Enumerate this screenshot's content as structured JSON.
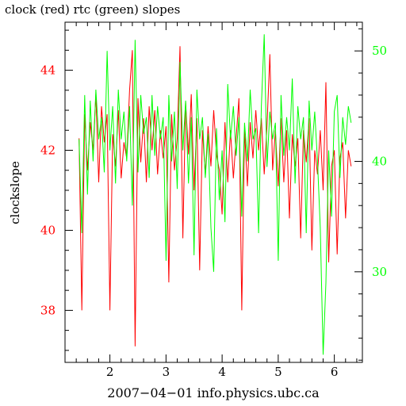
{
  "chart_data": {
    "type": "line",
    "title": "clock (red) rtc (green) slopes",
    "xlabel": "2007−04−01 info.physics.ubc.ca",
    "ylabel": "clockslope",
    "xlim": [
      1.2,
      6.5
    ],
    "ylim_left": [
      36.7,
      45.2
    ],
    "ylim_right": [
      21.8,
      52.6
    ],
    "x_ticks": [
      "2",
      "3",
      "4",
      "5",
      "6"
    ],
    "y_ticks_left": [
      "38",
      "40",
      "42",
      "44"
    ],
    "y_ticks_right": [
      "30",
      "40",
      "50"
    ],
    "colors": {
      "axis": "#000000",
      "left": "#ff0000",
      "right": "#00ff00",
      "red_series": "#ff0000",
      "green_series": "#00ff00"
    },
    "series": [
      {
        "name": "clock",
        "axis": "left",
        "color": "#ff0000",
        "x": [
          1.45,
          1.5,
          1.55,
          1.6,
          1.65,
          1.7,
          1.75,
          1.8,
          1.85,
          1.9,
          1.95,
          2.0,
          2.05,
          2.1,
          2.15,
          2.2,
          2.25,
          2.3,
          2.35,
          2.4,
          2.45,
          2.5,
          2.55,
          2.6,
          2.65,
          2.7,
          2.75,
          2.8,
          2.85,
          2.9,
          2.95,
          3.0,
          3.05,
          3.1,
          3.15,
          3.2,
          3.25,
          3.3,
          3.35,
          3.4,
          3.45,
          3.5,
          3.55,
          3.6,
          3.65,
          3.7,
          3.75,
          3.8,
          3.85,
          3.9,
          3.95,
          4.0,
          4.05,
          4.1,
          4.15,
          4.2,
          4.25,
          4.3,
          4.35,
          4.4,
          4.45,
          4.5,
          4.55,
          4.6,
          4.65,
          4.7,
          4.75,
          4.8,
          4.85,
          4.9,
          4.95,
          5.0,
          5.05,
          5.1,
          5.15,
          5.2,
          5.25,
          5.3,
          5.35,
          5.4,
          5.45,
          5.5,
          5.55,
          5.6,
          5.65,
          5.7,
          5.75,
          5.8,
          5.85,
          5.9,
          5.95,
          6.0,
          6.05,
          6.1,
          6.15,
          6.2,
          6.25,
          6.3
        ],
        "y": [
          42.3,
          38.0,
          42.9,
          41.5,
          42.7,
          42.0,
          43.4,
          41.2,
          43.1,
          42.2,
          42.9,
          38.0,
          42.4,
          41.6,
          43.0,
          41.3,
          42.2,
          41.8,
          43.5,
          44.5,
          37.1,
          43.3,
          41.7,
          42.8,
          41.2,
          43.1,
          42.0,
          43.0,
          41.4,
          42.5,
          41.8,
          42.6,
          38.7,
          42.9,
          41.5,
          42.3,
          44.6,
          39.8,
          43.2,
          41.9,
          43.4,
          41.0,
          42.8,
          39.0,
          42.5,
          41.4,
          42.6,
          41.6,
          43.0,
          41.9,
          41.5,
          40.4,
          42.7,
          41.2,
          42.5,
          41.3,
          42.3,
          43.3,
          38.0,
          42.5,
          41.1,
          42.7,
          41.8,
          43.0,
          42.0,
          42.8,
          41.4,
          42.6,
          44.4,
          41.5,
          42.5,
          41.1,
          42.8,
          41.2,
          42.5,
          40.3,
          42.4,
          41.6,
          42.3,
          39.8,
          42.5,
          41.7,
          42.8,
          39.5,
          42.0,
          41.4,
          42.5,
          41.0,
          43.7,
          39.2,
          41.6,
          42.0,
          39.4,
          41.8,
          42.2,
          40.3,
          42.0,
          41.6
        ]
      },
      {
        "name": "rtc",
        "axis": "right",
        "color": "#00ff00",
        "x": [
          1.45,
          1.5,
          1.55,
          1.6,
          1.65,
          1.7,
          1.75,
          1.8,
          1.85,
          1.9,
          1.95,
          2.0,
          2.05,
          2.1,
          2.15,
          2.2,
          2.25,
          2.3,
          2.35,
          2.4,
          2.45,
          2.5,
          2.55,
          2.6,
          2.65,
          2.7,
          2.75,
          2.8,
          2.85,
          2.9,
          2.95,
          3.0,
          3.05,
          3.1,
          3.15,
          3.2,
          3.25,
          3.3,
          3.35,
          3.4,
          3.45,
          3.5,
          3.55,
          3.6,
          3.65,
          3.7,
          3.75,
          3.8,
          3.85,
          3.9,
          3.95,
          4.0,
          4.05,
          4.1,
          4.15,
          4.2,
          4.25,
          4.3,
          4.35,
          4.4,
          4.45,
          4.5,
          4.55,
          4.6,
          4.65,
          4.7,
          4.75,
          4.8,
          4.85,
          4.9,
          4.95,
          5.0,
          5.05,
          5.1,
          5.15,
          5.2,
          5.25,
          5.3,
          5.35,
          5.4,
          5.45,
          5.5,
          5.55,
          5.6,
          5.65,
          5.7,
          5.75,
          5.8,
          5.85,
          5.9,
          5.95,
          6.0,
          6.05,
          6.1,
          6.15,
          6.2,
          6.25,
          6.3
        ],
        "y": [
          42.0,
          33.5,
          46.0,
          37.0,
          45.5,
          40.0,
          46.5,
          42.0,
          44.0,
          39.0,
          50.0,
          41.0,
          45.0,
          38.0,
          46.5,
          42.0,
          44.5,
          40.0,
          45.0,
          36.0,
          51.0,
          39.0,
          46.0,
          42.5,
          44.0,
          38.5,
          46.0,
          40.5,
          45.0,
          42.0,
          44.0,
          31.0,
          46.0,
          40.0,
          44.5,
          37.5,
          49.0,
          41.0,
          45.5,
          38.0,
          44.0,
          31.5,
          46.5,
          42.0,
          44.0,
          38.5,
          42.5,
          34.0,
          30.0,
          43.0,
          36.5,
          41.0,
          34.5,
          47.0,
          42.0,
          45.0,
          40.5,
          44.0,
          35.0,
          43.5,
          40.0,
          46.5,
          42.0,
          43.0,
          33.5,
          45.0,
          51.5,
          39.5,
          44.5,
          42.0,
          43.5,
          31.0,
          46.0,
          40.5,
          44.0,
          41.0,
          47.5,
          38.0,
          45.0,
          42.0,
          44.0,
          33.5,
          45.5,
          41.0,
          44.5,
          40.0,
          34.0,
          22.5,
          29.0,
          41.0,
          35.0,
          44.5,
          46.0,
          38.5,
          44.0,
          41.5,
          45.0,
          43.5
        ]
      }
    ]
  }
}
